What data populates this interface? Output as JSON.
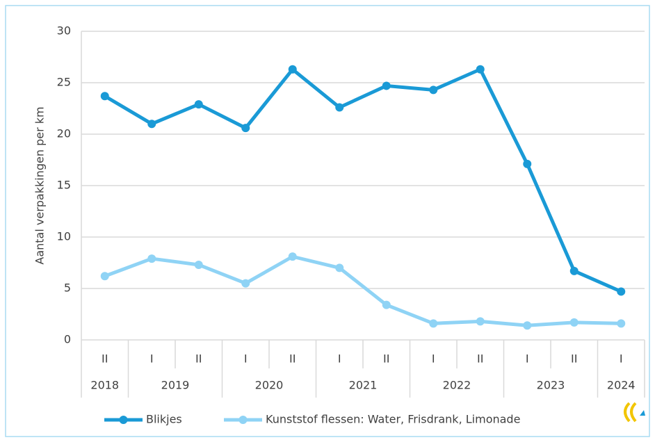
{
  "chart_data": {
    "type": "line",
    "ylabel": "Aantal verpakkingen per km",
    "categories": [
      "II",
      "I",
      "II",
      "I",
      "II",
      "I",
      "II",
      "I",
      "II",
      "I",
      "II",
      "I"
    ],
    "years": [
      "2018",
      "2019",
      null,
      "2020",
      null,
      "2021",
      null,
      "2022",
      null,
      "2023",
      null,
      "2024"
    ],
    "series": [
      {
        "name": "Blikjes",
        "color": "#1a9ad6",
        "values": [
          23.7,
          21.0,
          22.9,
          20.6,
          26.3,
          22.6,
          24.7,
          24.3,
          26.3,
          17.1,
          6.7,
          4.7
        ]
      },
      {
        "name": "Kunststof flessen: Water, Frisdrank, Limonade",
        "color": "#8fd3f5",
        "values": [
          6.2,
          7.9,
          7.3,
          5.5,
          8.1,
          7.0,
          3.4,
          1.6,
          1.8,
          1.4,
          1.7,
          1.6
        ]
      }
    ],
    "ylim": [
      0,
      30
    ],
    "yticks": [
      0,
      5,
      10,
      15,
      20,
      25,
      30
    ],
    "grid": true,
    "legend": "bottom"
  }
}
